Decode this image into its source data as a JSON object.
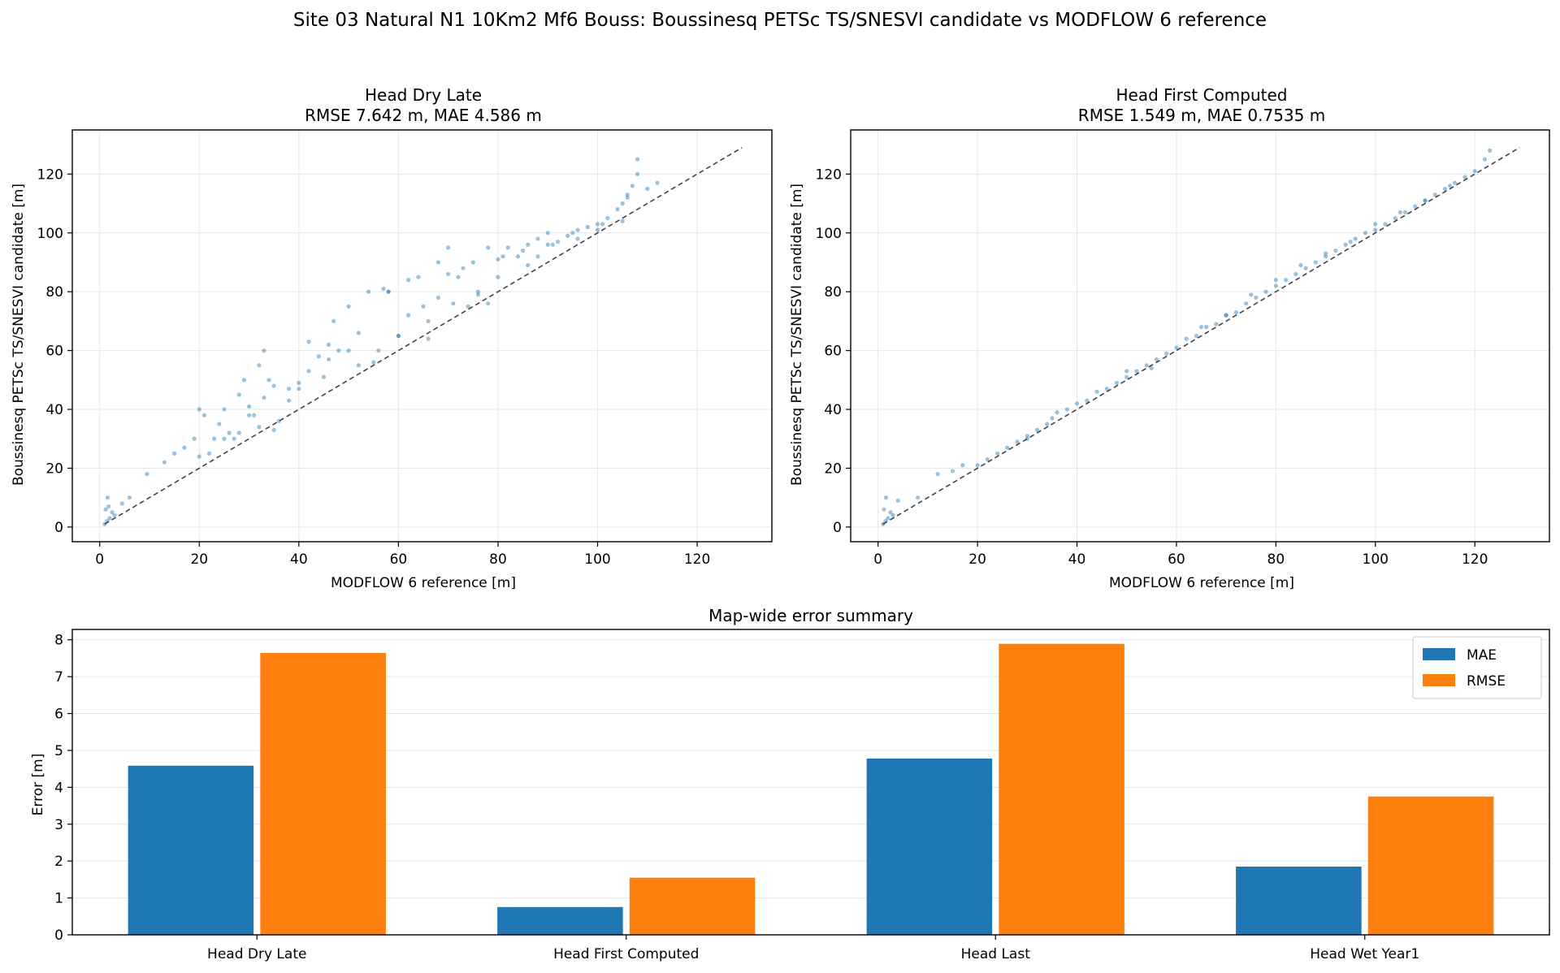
{
  "suptitle": "Site 03 Natural N1 10Km2 Mf6 Bouss: Boussinesq PETSc TS/SNESVI candidate vs MODFLOW 6 reference",
  "chart_data": [
    {
      "type": "scatter",
      "title": "Head Dry Late",
      "subtitle": "RMSE 7.642 m, MAE 4.586 m",
      "xlabel": "MODFLOW 6 reference [m]",
      "ylabel": "Boussinesq PETSc TS/SNESVI candidate [m]",
      "xlim": [
        -5.5,
        135
      ],
      "ylim": [
        -5,
        135
      ],
      "xticks": [
        0,
        20,
        40,
        60,
        80,
        100,
        120
      ],
      "yticks": [
        0,
        20,
        40,
        60,
        80,
        100,
        120
      ],
      "grid": true,
      "color": "#1f77b4",
      "identity_line": [
        [
          1,
          1
        ],
        [
          129,
          129
        ]
      ],
      "x": [
        1,
        1.5,
        2,
        1.2,
        1.6,
        2.5,
        1.8,
        3,
        4.5,
        6,
        9.5,
        13,
        15,
        17,
        19,
        20,
        21,
        22,
        23,
        24,
        25,
        26,
        27,
        28,
        29,
        30,
        31,
        32,
        33,
        34,
        35,
        36,
        38,
        40,
        42,
        44,
        46,
        48,
        50,
        52,
        54,
        56,
        58,
        60,
        62,
        64,
        66,
        68,
        70,
        72,
        73,
        74,
        76,
        78,
        80,
        82,
        84,
        86,
        88,
        90,
        92,
        94,
        96,
        98,
        100,
        102,
        104,
        105,
        106,
        107,
        108,
        110,
        112,
        25,
        30,
        35,
        40,
        45,
        50,
        55,
        60,
        65,
        70,
        75,
        80,
        85,
        90,
        95,
        100,
        105,
        20,
        28,
        33,
        38,
        42,
        47,
        52,
        57,
        62,
        66,
        71,
        76,
        81,
        86,
        91,
        96,
        101,
        106,
        108,
        32,
        46,
        58,
        68,
        78,
        88
      ],
      "y": [
        1,
        2,
        3,
        6,
        10,
        5,
        7,
        4,
        8,
        10,
        18,
        22,
        25,
        27,
        30,
        40,
        38,
        25,
        30,
        35,
        40,
        32,
        30,
        45,
        50,
        41,
        38,
        55,
        60,
        50,
        48,
        36,
        47,
        49,
        53,
        58,
        62,
        60,
        75,
        55,
        80,
        60,
        80,
        65,
        72,
        85,
        70,
        90,
        95,
        85,
        88,
        75,
        80,
        95,
        85,
        95,
        92,
        96,
        98,
        100,
        97,
        99,
        101,
        102,
        103,
        105,
        108,
        110,
        113,
        116,
        125,
        115,
        117,
        30,
        38,
        33,
        47,
        51,
        60,
        56,
        65,
        75,
        86,
        90,
        91,
        94,
        96,
        100,
        101,
        104,
        24,
        32,
        44,
        43,
        63,
        70,
        66,
        81,
        84,
        64,
        76,
        79,
        92,
        89,
        96,
        98,
        103,
        112,
        120,
        34,
        57,
        80,
        78,
        76,
        92
      ]
    },
    {
      "type": "scatter",
      "title": "Head First Computed",
      "subtitle": "RMSE 1.549 m, MAE 0.7535 m",
      "xlabel": "MODFLOW 6 reference [m]",
      "ylabel": "Boussinesq PETSc TS/SNESVI candidate [m]",
      "xlim": [
        -5.5,
        135
      ],
      "ylim": [
        -5,
        135
      ],
      "xticks": [
        0,
        20,
        40,
        60,
        80,
        100,
        120
      ],
      "yticks": [
        0,
        20,
        40,
        60,
        80,
        100,
        120
      ],
      "grid": true,
      "color": "#1f77b4",
      "identity_line": [
        [
          1,
          1
        ],
        [
          129,
          129
        ]
      ],
      "x": [
        1,
        1.5,
        2,
        1.2,
        1.6,
        2.5,
        3,
        4,
        8,
        12,
        15,
        17,
        20,
        22,
        24,
        26,
        28,
        30,
        32,
        34,
        36,
        38,
        40,
        42,
        44,
        46,
        48,
        50,
        52,
        54,
        56,
        58,
        60,
        62,
        64,
        66,
        68,
        70,
        72,
        74,
        76,
        78,
        80,
        82,
        84,
        86,
        88,
        90,
        92,
        94,
        96,
        98,
        100,
        102,
        104,
        106,
        108,
        110,
        112,
        114,
        116,
        118,
        120,
        122,
        123,
        30,
        50,
        65,
        75,
        85,
        95,
        105,
        115,
        35,
        55,
        70,
        80,
        90,
        100,
        110
      ],
      "y": [
        1,
        2,
        3,
        6,
        10,
        5,
        4,
        9,
        10,
        18,
        19,
        21,
        21,
        23,
        25,
        27,
        29,
        31,
        33,
        35,
        39,
        40,
        42,
        43,
        46,
        47,
        49,
        51,
        53,
        55,
        57,
        59,
        61,
        64,
        65,
        68,
        69,
        72,
        73,
        76,
        78,
        80,
        82,
        84,
        86,
        88,
        90,
        92,
        94,
        96,
        98,
        100,
        101,
        103,
        105,
        107,
        109,
        111,
        113,
        115,
        117,
        119,
        121,
        125,
        128,
        30,
        53,
        68,
        79,
        89,
        97,
        107,
        116,
        37,
        54,
        72,
        84,
        93,
        103,
        111
      ]
    },
    {
      "type": "bar",
      "title": "Map-wide error summary",
      "xlabel": "",
      "ylabel": "Error [m]",
      "ylim": [
        0,
        8.28
      ],
      "yticks": [
        0,
        1,
        2,
        3,
        4,
        5,
        6,
        7,
        8
      ],
      "grid": true,
      "legend": "top-right",
      "categories": [
        "Head Dry Late",
        "Head First Computed",
        "Head Last",
        "Head Wet Year1"
      ],
      "series": [
        {
          "name": "MAE",
          "color": "#1f77b4",
          "values": [
            4.586,
            0.7535,
            4.78,
            1.85
          ]
        },
        {
          "name": "RMSE",
          "color": "#ff7f0e",
          "values": [
            7.642,
            1.549,
            7.89,
            3.75
          ]
        }
      ]
    }
  ]
}
